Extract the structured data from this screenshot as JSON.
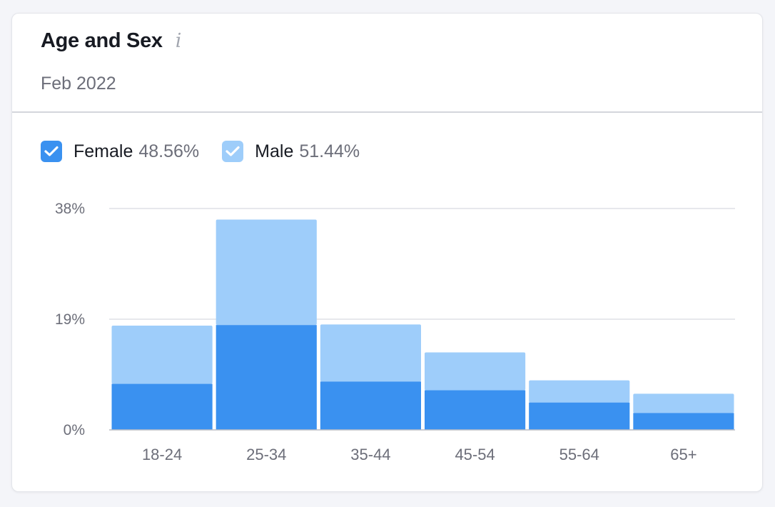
{
  "card": {
    "title": "Age and Sex",
    "info_icon": "i",
    "subtitle": "Feb 2022"
  },
  "legend": [
    {
      "name": "Female",
      "percent": "48.56%",
      "color": "#3a91f0",
      "checked": true
    },
    {
      "name": "Male",
      "percent": "51.44%",
      "color": "#9ecdfa",
      "checked": true
    }
  ],
  "chart_data": {
    "type": "bar",
    "stacked": true,
    "categories": [
      "18-24",
      "25-34",
      "35-44",
      "45-54",
      "55-64",
      "65+"
    ],
    "series": [
      {
        "name": "Female",
        "color": "#3a91f0",
        "values": [
          7.9,
          18.0,
          8.3,
          6.8,
          4.7,
          2.9
        ]
      },
      {
        "name": "Male",
        "color": "#9ecdfa",
        "values": [
          10.0,
          18.1,
          9.8,
          6.5,
          3.8,
          3.3
        ]
      }
    ],
    "yticks": [
      "0%",
      "19%",
      "38%"
    ],
    "ytick_values": [
      0,
      19,
      38
    ],
    "ylim": [
      0,
      38
    ],
    "grid": true
  }
}
